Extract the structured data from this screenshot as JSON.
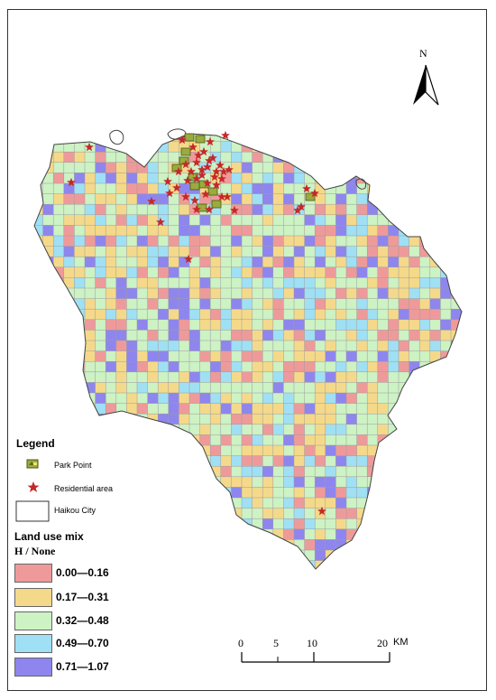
{
  "colors": {
    "class_1": "#ef9a9a",
    "class_2": "#f5d98a",
    "class_3": "#cdf2c4",
    "class_4": "#9fe0f5",
    "class_5": "#8e86ee",
    "residential": "#c62828",
    "park": "#8a9a3a",
    "grid_line": "#9a9a9a"
  },
  "legend": {
    "title": "Legend",
    "park_label": "Park Point",
    "residential_label": "Residential area",
    "boundary_label": "Haikou City"
  },
  "land_use_mix": {
    "title": "Land use mix",
    "subtitle": "H  /  None",
    "classes": [
      {
        "label": "0.00—0.16"
      },
      {
        "label": "0.17—0.31"
      },
      {
        "label": "0.32—0.48"
      },
      {
        "label": "0.49—0.70"
      },
      {
        "label": "0.71—1.07"
      }
    ]
  },
  "north_arrow": {
    "label": "N"
  },
  "scale_bar": {
    "ticks": [
      "0",
      "5",
      "10",
      "20"
    ],
    "unit": "KM"
  }
}
